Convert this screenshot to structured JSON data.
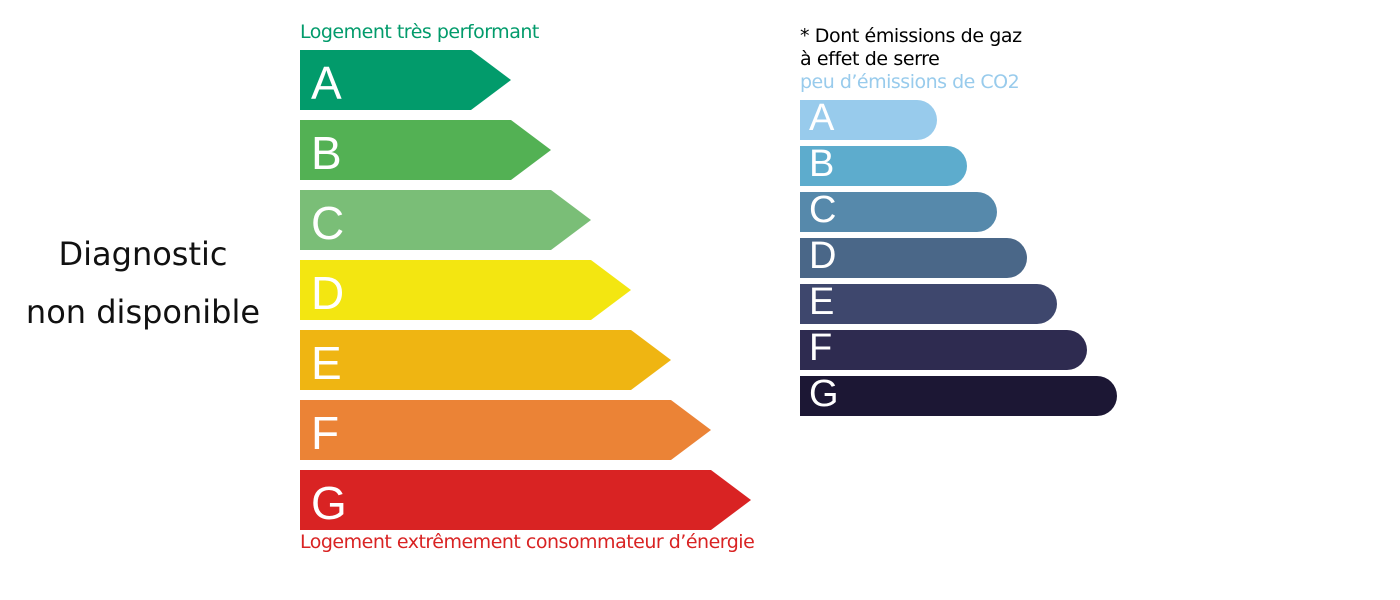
{
  "status_text_line1": "Diagnostic",
  "status_text_line2": "non disponible",
  "energy": {
    "top_label": "Logement très performant",
    "bottom_label": "Logement extrêmement consommateur d’énergie",
    "top_color": "#029b6b",
    "bottom_color": "#d92323",
    "classes": [
      {
        "letter": "A",
        "color": "#029b6b"
      },
      {
        "letter": "B",
        "color": "#53b154"
      },
      {
        "letter": "C",
        "color": "#7abe77"
      },
      {
        "letter": "D",
        "color": "#f3e611"
      },
      {
        "letter": "E",
        "color": "#efb512"
      },
      {
        "letter": "F",
        "color": "#eb8336"
      },
      {
        "letter": "G",
        "color": "#d92323"
      }
    ]
  },
  "ges": {
    "title_line1": "* Dont émissions de gaz",
    "title_line2": "à effet de serre",
    "top_label": "peu d’émissions de CO2",
    "top_color": "#98cbec",
    "classes": [
      {
        "letter": "A",
        "color": "#98cbec"
      },
      {
        "letter": "B",
        "color": "#5daccd"
      },
      {
        "letter": "C",
        "color": "#5689ab"
      },
      {
        "letter": "D",
        "color": "#4a6788"
      },
      {
        "letter": "E",
        "color": "#3e476d"
      },
      {
        "letter": "F",
        "color": "#2e2b50"
      },
      {
        "letter": "G",
        "color": "#1c1734"
      }
    ]
  }
}
